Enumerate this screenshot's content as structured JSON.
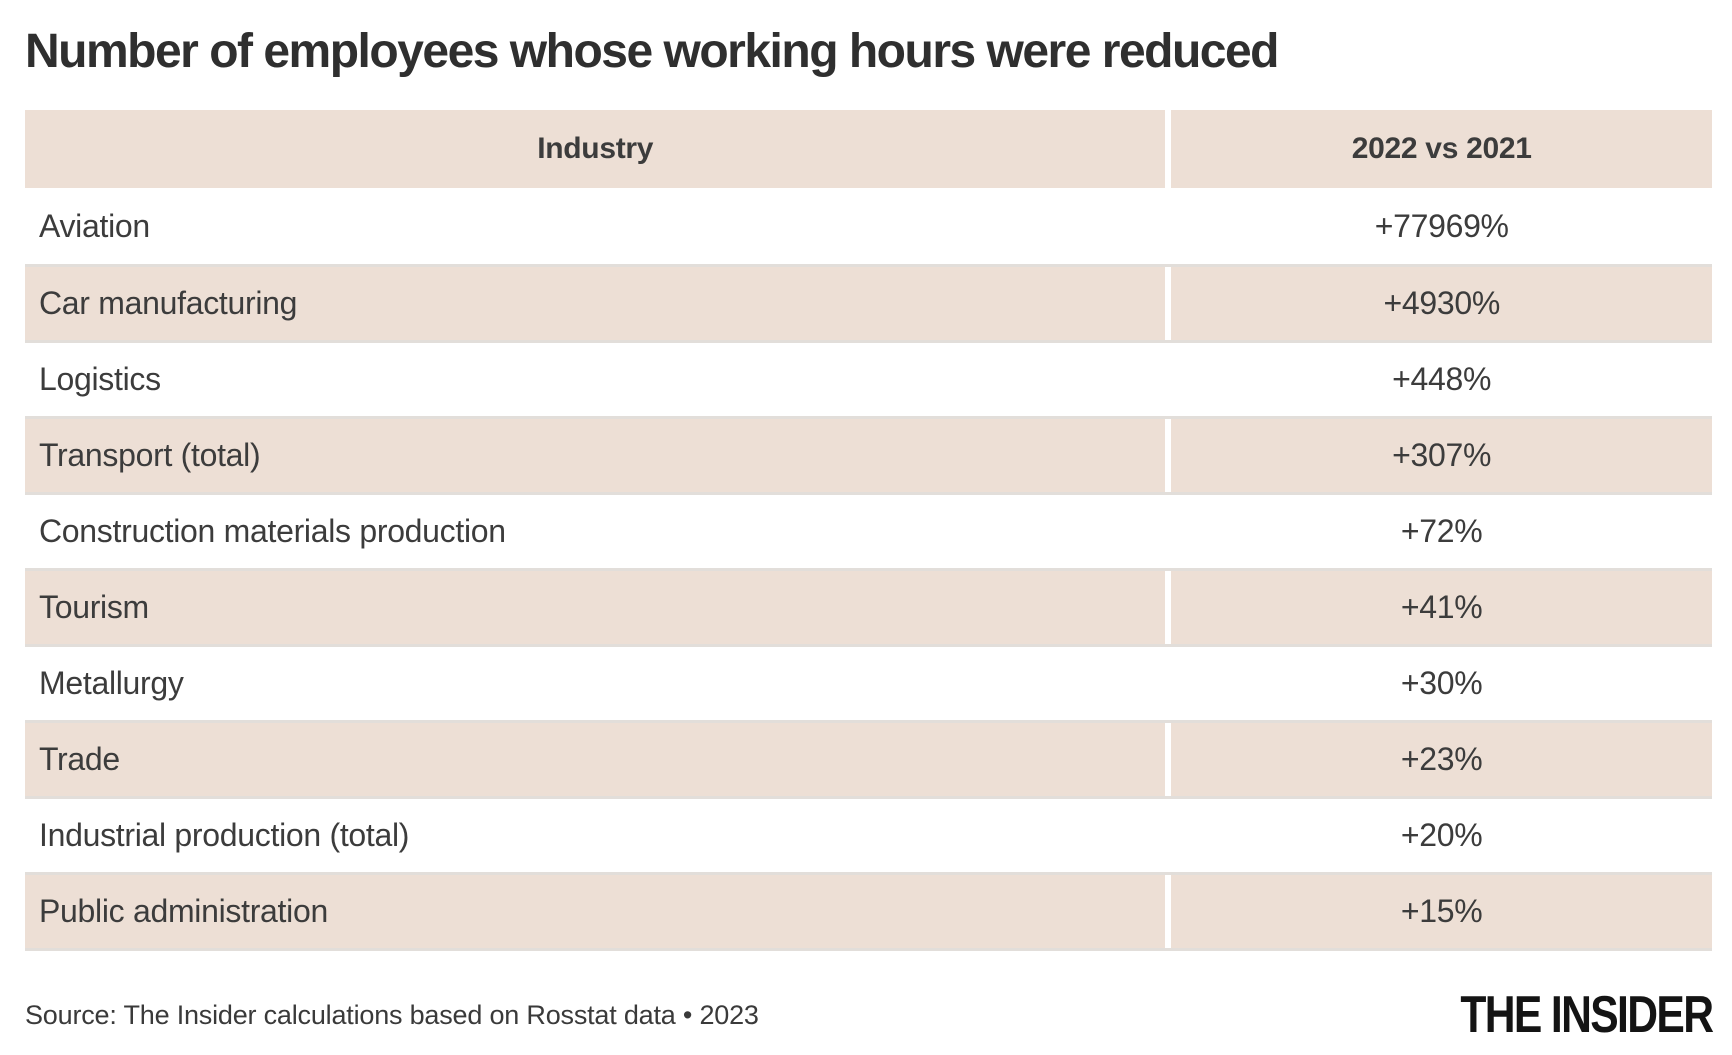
{
  "title": "Number of employees whose working hours were reduced",
  "table": {
    "columns": [
      "Industry",
      "2022 vs 2021"
    ],
    "rows": [
      {
        "industry": "Aviation",
        "change": "+77969%"
      },
      {
        "industry": "Car manufacturing",
        "change": "+4930%"
      },
      {
        "industry": "Logistics",
        "change": "+448%"
      },
      {
        "industry": "Transport (total)",
        "change": "+307%"
      },
      {
        "industry": "Construction materials production",
        "change": "+72%"
      },
      {
        "industry": "Tourism",
        "change": "+41%"
      },
      {
        "industry": "Metallurgy",
        "change": "+30%"
      },
      {
        "industry": "Trade",
        "change": "+23%"
      },
      {
        "industry": "Industrial production (total)",
        "change": "+20%"
      },
      {
        "industry": "Public administration",
        "change": "+15%"
      }
    ]
  },
  "footer": {
    "source": "Source: The Insider calculations based on Rosstat data • 2023",
    "logo": "THE INSIDER"
  },
  "colors": {
    "row_shade": "#eddfd5",
    "divider_gray": "#e2deda",
    "text": "#3c3c3c",
    "title": "#2f2f2f",
    "logo": "#141414"
  },
  "chart_data": {
    "type": "table",
    "title": "Number of employees whose working hours were reduced",
    "columns": [
      "Industry",
      "2022 vs 2021"
    ],
    "categories": [
      "Aviation",
      "Car manufacturing",
      "Logistics",
      "Transport (total)",
      "Construction materials production",
      "Tourism",
      "Metallurgy",
      "Trade",
      "Industrial production (total)",
      "Public administration"
    ],
    "values_percent_change": [
      77969,
      4930,
      448,
      307,
      72,
      41,
      30,
      23,
      20,
      15
    ],
    "value_labels": [
      "+77969%",
      "+4930%",
      "+448%",
      "+307%",
      "+72%",
      "+41%",
      "+30%",
      "+23%",
      "+20%",
      "+15%"
    ],
    "layout": {
      "shaded_rows": "header and even data rows",
      "value_alignment": "center",
      "label_alignment": "left"
    },
    "source": "Source: The Insider calculations based on Rosstat data • 2023"
  }
}
